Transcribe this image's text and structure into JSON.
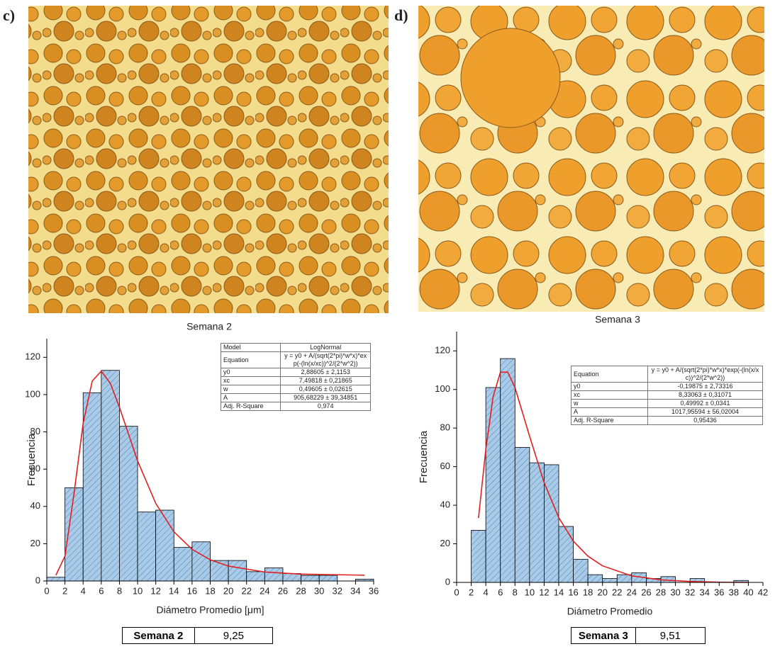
{
  "photos": [
    {
      "label": "c)"
    },
    {
      "label": "d)"
    }
  ],
  "chart_data": [
    {
      "type": "histogram",
      "title": "Semana 2",
      "x_label": "Diámetro Promedio [μm]",
      "y_label": "Frecuencia",
      "bins": [
        0,
        2,
        4,
        6,
        8,
        10,
        12,
        14,
        16,
        18,
        20,
        22,
        24,
        26,
        28,
        30,
        32,
        34,
        36
      ],
      "values": [
        2,
        50,
        101,
        113,
        83,
        37,
        38,
        18,
        21,
        11,
        11,
        5,
        7,
        4,
        3,
        3,
        0,
        1
      ],
      "color": "#a9cbe8",
      "fit_curve": {
        "color": "#e02020",
        "x": [
          1,
          2,
          3,
          4,
          5,
          6,
          7,
          8,
          10,
          12,
          14,
          16,
          18,
          20,
          24,
          28,
          35
        ],
        "values": [
          3.1,
          13.3,
          47.0,
          84.5,
          107.2,
          112.6,
          106.0,
          93.2,
          64.4,
          41.6,
          26.4,
          17.0,
          11.4,
          8.0,
          4.8,
          3.7,
          3.1
        ]
      },
      "xlim": [
        0,
        36
      ],
      "ylim": [
        0,
        130
      ],
      "xticks": [
        0,
        2,
        4,
        6,
        8,
        10,
        12,
        14,
        16,
        18,
        20,
        22,
        24,
        26,
        28,
        30,
        32,
        34,
        36
      ],
      "yticks": [
        0,
        20,
        40,
        60,
        80,
        100,
        120
      ]
    },
    {
      "type": "histogram",
      "title": "Semana 3",
      "x_label": "Diámetro Promedio",
      "y_label": "Frecuencia",
      "bins": [
        2,
        4,
        6,
        8,
        10,
        12,
        14,
        16,
        18,
        20,
        22,
        24,
        26,
        28,
        30,
        32,
        34,
        36,
        38,
        40
      ],
      "values": [
        27,
        101,
        116,
        70,
        62,
        61,
        29,
        12,
        4,
        2,
        4,
        5,
        2,
        3,
        0,
        2,
        0,
        0,
        1
      ],
      "color": "#a9cbe8",
      "fit_curve": {
        "color": "#e02020",
        "x": [
          3,
          4,
          5,
          6,
          7,
          8,
          10,
          12,
          14,
          16,
          18,
          20,
          24,
          28,
          32,
          36,
          40
        ],
        "values": [
          33.4,
          69.0,
          96.2,
          108.9,
          109.0,
          101.0,
          75.8,
          51.7,
          33.6,
          21.4,
          13.6,
          8.6,
          3.4,
          1.3,
          0.5,
          0.1,
          0
        ]
      },
      "xlim": [
        0,
        42
      ],
      "ylim": [
        0,
        130
      ],
      "xticks": [
        0,
        2,
        4,
        6,
        8,
        10,
        12,
        14,
        16,
        18,
        20,
        22,
        24,
        26,
        28,
        30,
        32,
        34,
        36,
        38,
        40,
        42
      ],
      "yticks": [
        0,
        20,
        40,
        60,
        80,
        100,
        120
      ]
    }
  ],
  "fit_tables": [
    {
      "rows": [
        [
          "Model",
          "LogNormal"
        ],
        [
          "Equation",
          "y = y0 + A/(sqrt(2*pi)*w*x)*exp(-(ln(x/xc))^2/(2*w^2))"
        ],
        [
          "y0",
          "2,88605 ± 2,1153"
        ],
        [
          "xc",
          "7,49818 ± 0,21865"
        ],
        [
          "w",
          "0,49605 ± 0,02615"
        ],
        [
          "A",
          "905,68229 ± 39,34851"
        ],
        [
          "Adj. R-Square",
          "0,974"
        ]
      ]
    },
    {
      "rows": [
        [
          "Equation",
          "y = y0 + A/(sqrt(2*pi)*w*x)*exp(-(ln(x/xc))^2/(2*w^2))"
        ],
        [
          "y0",
          "-0,19875 ± 2,73316"
        ],
        [
          "xc",
          "8,33063 ± 0,31071"
        ],
        [
          "w",
          "0,49992 ± 0,0341"
        ],
        [
          "A",
          "1017,95594 ± 56,02004"
        ],
        [
          "Adj. R-Square",
          "0,95436"
        ]
      ]
    }
  ],
  "summary_tables": [
    {
      "label": "Semana 2",
      "value": "9,25"
    },
    {
      "label": "Semana 3",
      "value": "9,51"
    }
  ]
}
